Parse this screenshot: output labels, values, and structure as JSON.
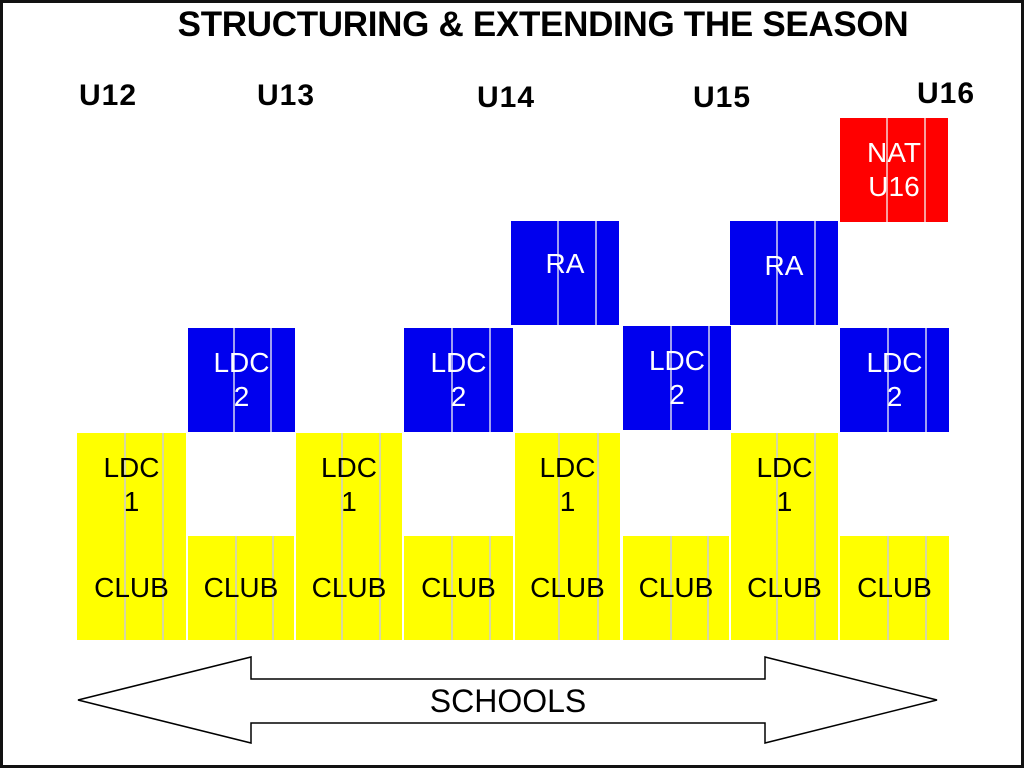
{
  "title": "STRUCTURING & EXTENDING THE SEASON",
  "age_groups": [
    "U12",
    "U13",
    "U14",
    "U15",
    "U16"
  ],
  "blocks": {
    "club_label": "CLUB",
    "ldc1_label": "LDC\n1",
    "ldc2_label": "LDC\n2",
    "ra_label": "RA",
    "nat_label": "NAT\nU16"
  },
  "schools_label": "SCHOOLS",
  "colors": {
    "yellow": "#ffff00",
    "blue": "#0000ee",
    "red": "#ff0000"
  }
}
